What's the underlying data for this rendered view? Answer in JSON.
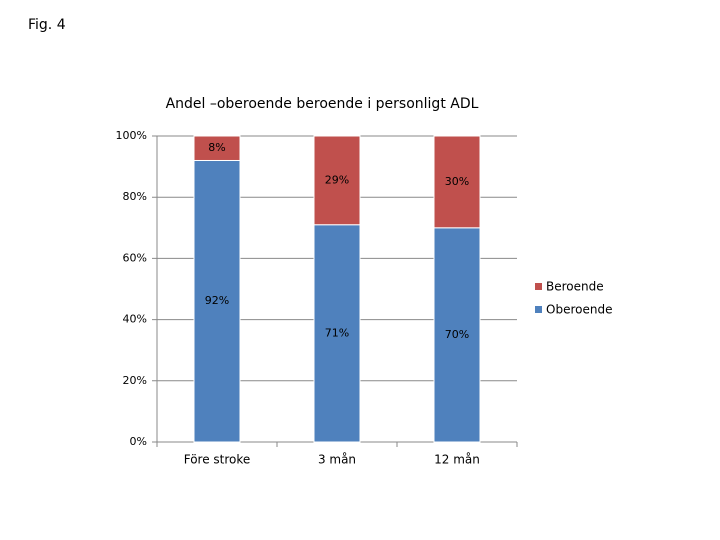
{
  "figure_label": "Fig. 4",
  "chart_data": {
    "type": "stacked_bar",
    "title": "Andel –oberoende beroende i personligt ADL",
    "categories": [
      "Före stroke",
      "3 mån",
      "12 mån"
    ],
    "series": [
      {
        "name": "Oberoende",
        "color": "#4f81bd",
        "values": [
          92,
          71,
          70
        ],
        "value_labels": [
          "92%",
          "71%",
          "70%"
        ]
      },
      {
        "name": "Beroende",
        "color": "#c0504d",
        "values": [
          8,
          29,
          30
        ],
        "value_labels": [
          "8%",
          "29%",
          "30%"
        ]
      }
    ],
    "ylim": [
      0,
      100
    ],
    "yticks": [
      {
        "value": 0,
        "label": "0%"
      },
      {
        "value": 20,
        "label": "20%"
      },
      {
        "value": 40,
        "label": "40%"
      },
      {
        "value": 60,
        "label": "60%"
      },
      {
        "value": 80,
        "label": "80%"
      },
      {
        "value": 100,
        "label": "100%"
      }
    ],
    "grid": true,
    "legend": "right"
  }
}
